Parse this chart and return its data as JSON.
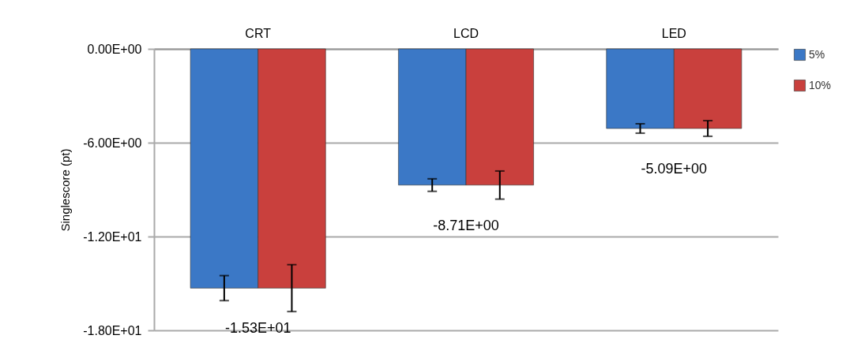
{
  "chart_data": {
    "type": "bar",
    "categories": [
      "CRT",
      "LCD",
      "LED"
    ],
    "ylabel": "Singlescore (pt)",
    "series": [
      {
        "name": "5%",
        "color": "#3b78c6",
        "values": [
          -15.3,
          -8.71,
          -5.09
        ],
        "errors": [
          0.8,
          0.4,
          0.3
        ]
      },
      {
        "name": "10%",
        "color": "#c9403d",
        "values": [
          -15.3,
          -8.71,
          -5.09
        ],
        "errors": [
          1.5,
          0.9,
          0.5
        ]
      }
    ],
    "ylim": [
      -18,
      0
    ],
    "yticks": [
      {
        "value": 0,
        "label": "0.00E+00"
      },
      {
        "value": -6,
        "label": "-6.00E+00"
      },
      {
        "value": -12,
        "label": "-1.20E+01"
      },
      {
        "value": -18,
        "label": "-1.80E+01"
      }
    ],
    "grid": "y",
    "legend": "right",
    "annotations": [
      {
        "text": "-1.53E+01",
        "x": "CRT",
        "y": -15.3
      },
      {
        "text": "-8.71E+00",
        "x": "LCD",
        "y": -8.71
      },
      {
        "text": "-5.09E+00",
        "x": "LED",
        "y": -5.09
      }
    ]
  }
}
